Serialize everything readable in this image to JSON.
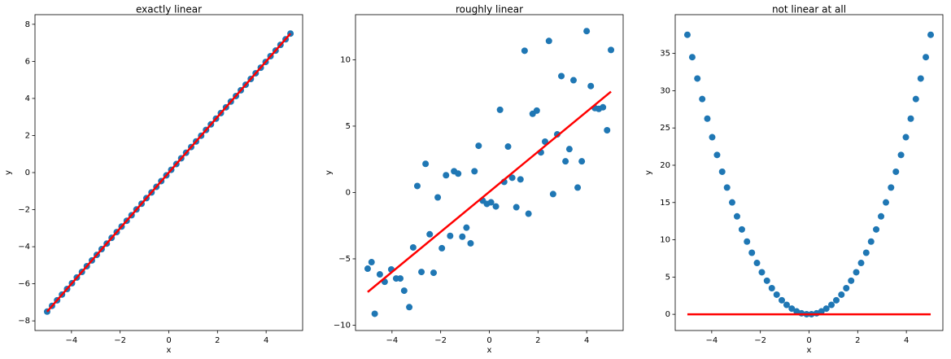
{
  "chart_data": [
    {
      "type": "scatter",
      "title": "exactly linear",
      "x_label": "x",
      "y_label": "y",
      "xlim": [
        -5.5,
        5.5
      ],
      "ylim": [
        -8.52,
        8.52
      ],
      "xticks": [
        {
          "value": -4,
          "label": "−4"
        },
        {
          "value": -2,
          "label": "−2"
        },
        0,
        2,
        4
      ],
      "yticks": [
        {
          "value": -8,
          "label": "−8"
        },
        {
          "value": -6,
          "label": "−6"
        },
        {
          "value": -4,
          "label": "−4"
        },
        {
          "value": -2,
          "label": "−2"
        },
        0,
        2,
        4,
        6,
        8
      ],
      "series": [
        {
          "color": "#1f77b4",
          "x": [
            -5,
            -4.8,
            -4.59,
            -4.39,
            -4.18,
            -3.98,
            -3.78,
            -3.57,
            -3.37,
            -3.16,
            -2.96,
            -2.76,
            -2.55,
            -2.35,
            -2.14,
            -1.94,
            -1.73,
            -1.53,
            -1.33,
            -1.12,
            -0.92,
            -0.71,
            -0.51,
            -0.31,
            -0.1,
            0.1,
            0.31,
            0.51,
            0.71,
            0.92,
            1.12,
            1.33,
            1.53,
            1.73,
            1.94,
            2.14,
            2.35,
            2.55,
            2.76,
            2.96,
            3.16,
            3.37,
            3.57,
            3.78,
            3.98,
            4.18,
            4.39,
            4.59,
            4.8,
            5
          ],
          "values": [
            -7.5,
            -7.19,
            -6.89,
            -6.58,
            -6.28,
            -5.97,
            -5.66,
            -5.36,
            -5.05,
            -4.74,
            -4.44,
            -4.13,
            -3.83,
            -3.52,
            -3.21,
            -2.91,
            -2.6,
            -2.3,
            -1.99,
            -1.68,
            -1.38,
            -1.07,
            -0.77,
            -0.46,
            -0.15,
            0.15,
            0.46,
            0.77,
            1.07,
            1.38,
            1.68,
            1.99,
            2.3,
            2.6,
            2.91,
            3.21,
            3.52,
            3.83,
            4.13,
            4.44,
            4.74,
            5.05,
            5.36,
            5.66,
            5.97,
            6.28,
            6.58,
            6.89,
            7.19,
            7.5
          ]
        },
        {
          "type": "line",
          "color": "#ff0000",
          "x": [
            -5,
            5
          ],
          "values": [
            -7.5,
            7.5
          ]
        }
      ]
    },
    {
      "type": "scatter",
      "title": "roughly linear",
      "x_label": "x",
      "y_label": "y",
      "xlim": [
        -5.5,
        5.5
      ],
      "ylim": [
        -10.4,
        13.4
      ],
      "xticks": [
        {
          "value": -4,
          "label": "−4"
        },
        {
          "value": -2,
          "label": "−2"
        },
        0,
        2,
        4
      ],
      "yticks": [
        {
          "value": -10,
          "label": "−10"
        },
        {
          "value": -5,
          "label": "−5"
        },
        0,
        5,
        10
      ],
      "series": [
        {
          "color": "#1f77b4",
          "x": [
            -5.0,
            -4.84,
            -4.71,
            -4.5,
            -4.3,
            -4.03,
            -3.83,
            -3.66,
            -3.5,
            -3.29,
            -3.13,
            -2.96,
            -2.79,
            -2.62,
            -2.45,
            -2.29,
            -2.12,
            -1.95,
            -1.78,
            -1.61,
            -1.45,
            -1.28,
            -1.11,
            -0.94,
            -0.77,
            -0.61,
            -0.44,
            -0.27,
            -0.1,
            0.07,
            0.27,
            0.44,
            0.61,
            0.77,
            0.94,
            1.11,
            1.28,
            1.45,
            1.61,
            1.78,
            1.95,
            2.12,
            2.29,
            2.45,
            2.62,
            2.79,
            2.96,
            3.13,
            3.29,
            3.46,
            3.63,
            3.8,
            4.0,
            4.17,
            4.34,
            4.5,
            4.67,
            4.84,
            5.0
          ],
          "values": [
            -5.74,
            -5.25,
            -9.14,
            -6.17,
            -6.73,
            -5.8,
            -6.48,
            -6.48,
            -7.4,
            -8.64,
            -4.14,
            0.49,
            -5.99,
            2.16,
            -3.15,
            -6.05,
            -0.37,
            -4.2,
            1.3,
            -3.27,
            1.6,
            1.42,
            -3.33,
            -2.65,
            -3.83,
            1.6,
            3.52,
            -0.62,
            -0.86,
            -0.74,
            -1.05,
            6.23,
            0.8,
            3.46,
            1.11,
            -1.11,
            0.99,
            10.68,
            -1.6,
            5.93,
            6.17,
            3.02,
            3.83,
            11.42,
            -0.12,
            4.38,
            8.77,
            2.35,
            3.27,
            8.46,
            0.37,
            2.35,
            12.16,
            8.02,
            6.36,
            6.3,
            6.42,
            4.69,
            10.74
          ]
        },
        {
          "type": "line",
          "color": "#ff0000",
          "x": [
            -5,
            5
          ],
          "values": [
            -7.5,
            7.6
          ]
        }
      ]
    },
    {
      "type": "scatter",
      "title": "not linear at all",
      "x_label": "x",
      "y_label": "y",
      "xlim": [
        -5.5,
        5.5
      ],
      "ylim": [
        -2.17,
        40.2
      ],
      "xticks": [
        {
          "value": -4,
          "label": "−4"
        },
        {
          "value": -2,
          "label": "−2"
        },
        0,
        2,
        4
      ],
      "yticks": [
        0,
        5,
        10,
        15,
        20,
        25,
        30,
        35
      ],
      "series": [
        {
          "color": "#1f77b4",
          "x": [
            -5,
            -4.8,
            -4.59,
            -4.39,
            -4.18,
            -3.98,
            -3.78,
            -3.57,
            -3.37,
            -3.16,
            -2.96,
            -2.76,
            -2.55,
            -2.35,
            -2.14,
            -1.94,
            -1.73,
            -1.53,
            -1.33,
            -1.12,
            -0.92,
            -0.71,
            -0.51,
            -0.31,
            -0.1,
            0.1,
            0.31,
            0.51,
            0.71,
            0.92,
            1.12,
            1.33,
            1.53,
            1.73,
            1.94,
            2.14,
            2.35,
            2.55,
            2.76,
            2.96,
            3.16,
            3.37,
            3.57,
            3.78,
            3.98,
            4.18,
            4.39,
            4.59,
            4.8,
            5
          ],
          "values": [
            37.5,
            34.5,
            31.63,
            28.88,
            26.25,
            23.76,
            21.38,
            19.13,
            17.01,
            15.01,
            13.14,
            11.39,
            9.76,
            8.26,
            6.89,
            5.64,
            4.51,
            3.51,
            2.64,
            1.89,
            1.27,
            0.77,
            0.39,
            0.14,
            0.02,
            0.02,
            0.14,
            0.39,
            0.77,
            1.27,
            1.89,
            2.64,
            3.51,
            4.51,
            5.64,
            6.89,
            8.26,
            9.76,
            11.39,
            13.14,
            15.01,
            17.01,
            19.13,
            21.38,
            23.76,
            26.25,
            28.88,
            31.63,
            34.5,
            37.5
          ]
        },
        {
          "type": "line",
          "color": "#ff0000",
          "x": [
            -5,
            5
          ],
          "values": [
            0,
            0
          ]
        }
      ]
    }
  ]
}
